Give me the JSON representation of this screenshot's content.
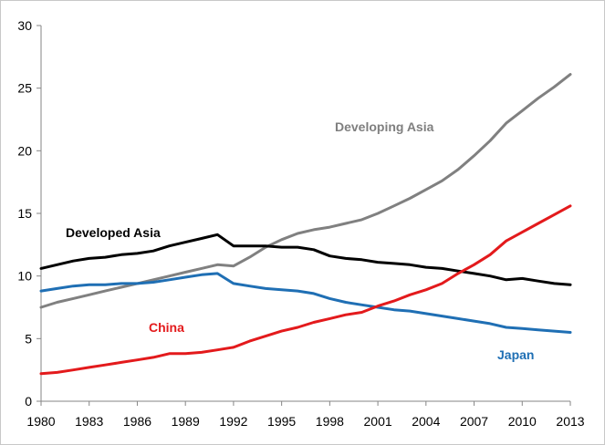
{
  "chart_data": {
    "type": "line",
    "title": "",
    "xlabel": "",
    "ylabel": "",
    "xlim": [
      1980,
      2013
    ],
    "ylim": [
      0,
      30
    ],
    "x_ticks": [
      "1980",
      "1983",
      "1986",
      "1989",
      "1992",
      "1995",
      "1998",
      "2001",
      "2004",
      "2007",
      "2010",
      "2013"
    ],
    "y_ticks": [
      "0",
      "5",
      "10",
      "15",
      "20",
      "25",
      "30"
    ],
    "grid": false,
    "x": [
      1980,
      1981,
      1982,
      1983,
      1984,
      1985,
      1986,
      1987,
      1988,
      1989,
      1990,
      1991,
      1992,
      1993,
      1994,
      1995,
      1996,
      1997,
      1998,
      1999,
      2000,
      2001,
      2002,
      2003,
      2004,
      2005,
      2006,
      2007,
      2008,
      2009,
      2010,
      2011,
      2012,
      2013
    ],
    "series": [
      {
        "name": "Developing Asia",
        "color": "#808080",
        "label_color": "#7f7f7f",
        "values": [
          7.5,
          7.9,
          8.2,
          8.5,
          8.8,
          9.1,
          9.4,
          9.7,
          10.0,
          10.3,
          10.6,
          10.9,
          10.8,
          11.5,
          12.3,
          12.9,
          13.4,
          13.7,
          13.9,
          14.2,
          14.5,
          15.0,
          15.6,
          16.2,
          16.9,
          17.6,
          18.5,
          19.6,
          20.8,
          22.2,
          23.2,
          24.2,
          25.1,
          26.1
        ]
      },
      {
        "name": "Developed Asia",
        "color": "#000000",
        "label_color": "#000000",
        "values": [
          10.6,
          10.9,
          11.2,
          11.4,
          11.5,
          11.7,
          11.8,
          12.0,
          12.4,
          12.7,
          13.0,
          13.3,
          12.4,
          12.4,
          12.4,
          12.3,
          12.3,
          12.1,
          11.6,
          11.4,
          11.3,
          11.1,
          11.0,
          10.9,
          10.7,
          10.6,
          10.4,
          10.2,
          10.0,
          9.7,
          9.8,
          9.6,
          9.4,
          9.3
        ]
      },
      {
        "name": "Japan",
        "color": "#1f6fb4",
        "label_color": "#1f6fb4",
        "values": [
          8.8,
          9.0,
          9.2,
          9.3,
          9.3,
          9.4,
          9.4,
          9.5,
          9.7,
          9.9,
          10.1,
          10.2,
          9.4,
          9.2,
          9.0,
          8.9,
          8.8,
          8.6,
          8.2,
          7.9,
          7.7,
          7.5,
          7.3,
          7.2,
          7.0,
          6.8,
          6.6,
          6.4,
          6.2,
          5.9,
          5.8,
          5.7,
          5.6,
          5.5
        ]
      },
      {
        "name": "China",
        "color": "#e31a1c",
        "label_color": "#e31a1c",
        "values": [
          2.2,
          2.3,
          2.5,
          2.7,
          2.9,
          3.1,
          3.3,
          3.5,
          3.8,
          3.8,
          3.9,
          4.1,
          4.3,
          4.8,
          5.2,
          5.6,
          5.9,
          6.3,
          6.6,
          6.9,
          7.1,
          7.6,
          8.0,
          8.5,
          8.9,
          9.4,
          10.2,
          10.9,
          11.7,
          12.8,
          13.5,
          14.2,
          14.9,
          15.6
        ]
      }
    ]
  }
}
